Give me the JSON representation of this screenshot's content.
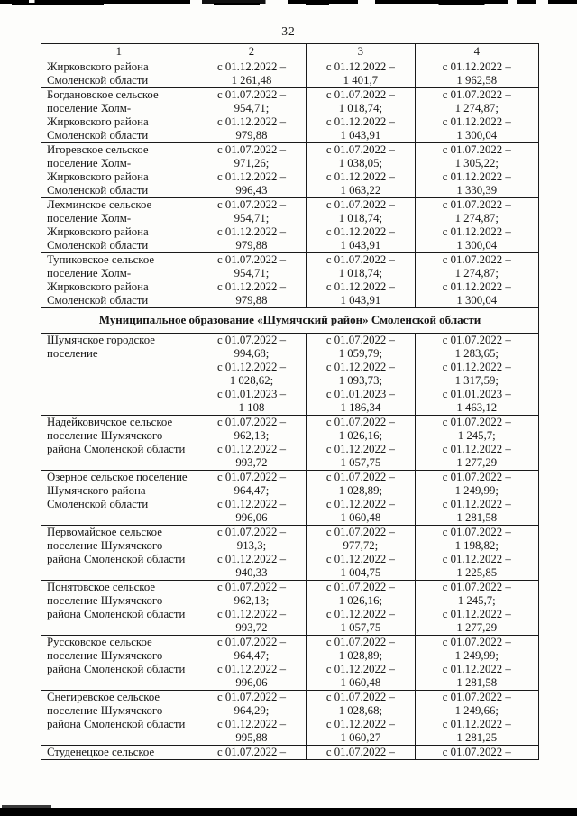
{
  "page": {
    "number": "32"
  },
  "colors": {
    "border": "#1a1a1a",
    "text": "#161616",
    "scan_band": "#000000",
    "paper": "#fdfdfb"
  },
  "table": {
    "column_headers": [
      "1",
      "2",
      "3",
      "4"
    ],
    "rows": [
      {
        "type": "data",
        "name_lines": [
          "Жирковского района",
          "Смоленской области"
        ],
        "cells": [
          [
            "с 01.12.2022 –",
            "1 261,48"
          ],
          [
            "с 01.12.2022 –",
            "1 401,7"
          ],
          [
            "с 01.12.2022 –",
            "1 962,58"
          ]
        ]
      },
      {
        "type": "data",
        "name_lines": [
          "Богдановское сельское",
          "поселение Холм-",
          "Жирковского района",
          "Смоленской области"
        ],
        "cells": [
          [
            "с 01.07.2022 –",
            "954,71;",
            "с 01.12.2022 –",
            "979,88"
          ],
          [
            "с 01.07.2022 –",
            "1 018,74;",
            "с 01.12.2022 –",
            "1 043,91"
          ],
          [
            "с 01.07.2022 –",
            "1 274,87;",
            "с 01.12.2022 –",
            "1 300,04"
          ]
        ]
      },
      {
        "type": "data",
        "name_lines": [
          "Игоревское сельское",
          "поселение Холм-",
          "Жирковского района",
          "Смоленской области"
        ],
        "cells": [
          [
            "с 01.07.2022 –",
            "971,26;",
            "с 01.12.2022 –",
            "996,43"
          ],
          [
            "с 01.07.2022 –",
            "1 038,05;",
            "с 01.12.2022 –",
            "1 063,22"
          ],
          [
            "с 01.07.2022 –",
            "1 305,22;",
            "с 01.12.2022 –",
            "1 330,39"
          ]
        ]
      },
      {
        "type": "data",
        "name_lines": [
          "Лехминское сельское",
          "поселение Холм-",
          "Жирковского района",
          "Смоленской области"
        ],
        "cells": [
          [
            "с 01.07.2022 –",
            "954,71;",
            "с 01.12.2022 –",
            "979,88"
          ],
          [
            "с 01.07.2022 –",
            "1 018,74;",
            "с 01.12.2022 –",
            "1 043,91"
          ],
          [
            "с 01.07.2022 –",
            "1 274,87;",
            "с 01.12.2022 –",
            "1 300,04"
          ]
        ]
      },
      {
        "type": "data",
        "name_lines": [
          "Тупиковское сельское",
          "поселение Холм-",
          "Жирковского района",
          "Смоленской области"
        ],
        "cells": [
          [
            "с 01.07.2022 –",
            "954,71;",
            "с 01.12.2022 –",
            "979,88"
          ],
          [
            "с 01.07.2022 –",
            "1 018,74;",
            "с 01.12.2022 –",
            "1 043,91"
          ],
          [
            "с 01.07.2022 –",
            "1 274,87;",
            "с 01.12.2022 –",
            "1 300,04"
          ]
        ]
      },
      {
        "type": "section",
        "label": "Муниципальное образование «Шумячский район» Смоленской области"
      },
      {
        "type": "data",
        "name_lines": [
          "Шумячское городское",
          "поселение"
        ],
        "cells": [
          [
            "с 01.07.2022 –",
            "994,68;",
            "с 01.12.2022 –",
            "1 028,62;",
            "с 01.01.2023 –",
            "1 108"
          ],
          [
            "с 01.07.2022 –",
            "1 059,79;",
            "с 01.12.2022 –",
            "1 093,73;",
            "с 01.01.2023 –",
            "1 186,34"
          ],
          [
            "с 01.07.2022 –",
            "1 283,65;",
            "с 01.12.2022 –",
            "1 317,59;",
            "с 01.01.2023 –",
            "1 463,12"
          ]
        ]
      },
      {
        "type": "data",
        "name_lines": [
          "Надейковичское сельское",
          "поселение Шумячского",
          "района Смоленской области"
        ],
        "cells": [
          [
            "с 01.07.2022 –",
            "962,13;",
            "с 01.12.2022 –",
            "993,72"
          ],
          [
            "с 01.07.2022 –",
            "1 026,16;",
            "с 01.12.2022 –",
            "1 057,75"
          ],
          [
            "с 01.07.2022 –",
            "1 245,7;",
            "с 01.12.2022 –",
            "1 277,29"
          ]
        ]
      },
      {
        "type": "data",
        "name_lines": [
          "Озерное сельское поселение",
          "Шумячского района",
          "Смоленской области"
        ],
        "cells": [
          [
            "с 01.07.2022 –",
            "964,47;",
            "с 01.12.2022 –",
            "996,06"
          ],
          [
            "с 01.07.2022 –",
            "1 028,89;",
            "с 01.12.2022 –",
            "1 060,48"
          ],
          [
            "с 01.07.2022 –",
            "1 249,99;",
            "с 01.12.2022 –",
            "1 281,58"
          ]
        ]
      },
      {
        "type": "data",
        "name_lines": [
          "Первомайское сельское",
          "поселение Шумячского",
          "района Смоленской области"
        ],
        "cells": [
          [
            "с 01.07.2022 –",
            "913,3;",
            "с 01.12.2022 –",
            "940,33"
          ],
          [
            "с 01.07.2022 –",
            "977,72;",
            "с 01.12.2022 –",
            "1 004,75"
          ],
          [
            "с 01.07.2022 –",
            "1 198,82;",
            "с 01.12.2022 –",
            "1 225,85"
          ]
        ]
      },
      {
        "type": "data",
        "name_lines": [
          "Понятовское сельское",
          "поселение Шумячского",
          "района Смоленской области"
        ],
        "cells": [
          [
            "с 01.07.2022 –",
            "962,13;",
            "с 01.12.2022 –",
            "993,72"
          ],
          [
            "с 01.07.2022 –",
            "1 026,16;",
            "с 01.12.2022 –",
            "1 057,75"
          ],
          [
            "с 01.07.2022 –",
            "1 245,7;",
            "с 01.12.2022 –",
            "1 277,29"
          ]
        ]
      },
      {
        "type": "data",
        "name_lines": [
          "Руссковское сельское",
          "поселение Шумячского",
          "района Смоленской области"
        ],
        "cells": [
          [
            "с 01.07.2022 –",
            "964,47;",
            "с 01.12.2022 –",
            "996,06"
          ],
          [
            "с 01.07.2022 –",
            "1 028,89;",
            "с 01.12.2022 –",
            "1 060,48"
          ],
          [
            "с 01.07.2022 –",
            "1 249,99;",
            "с 01.12.2022 –",
            "1 281,58"
          ]
        ]
      },
      {
        "type": "data",
        "name_lines": [
          "Снегиревское сельское",
          "поселение Шумячского",
          "района Смоленской области"
        ],
        "cells": [
          [
            "с 01.07.2022 –",
            "964,29;",
            "с 01.12.2022 –",
            "995,88"
          ],
          [
            "с 01.07.2022 –",
            "1 028,68;",
            "с 01.12.2022 –",
            "1 060,27"
          ],
          [
            "с 01.07.2022 –",
            "1 249,66;",
            "с 01.12.2022 –",
            "1 281,25"
          ]
        ]
      },
      {
        "type": "data",
        "name_lines": [
          "Студенецкое сельское"
        ],
        "cells": [
          [
            "с 01.07.2022 –"
          ],
          [
            "с 01.07.2022 –"
          ],
          [
            "с 01.07.2022 –"
          ]
        ]
      }
    ]
  }
}
